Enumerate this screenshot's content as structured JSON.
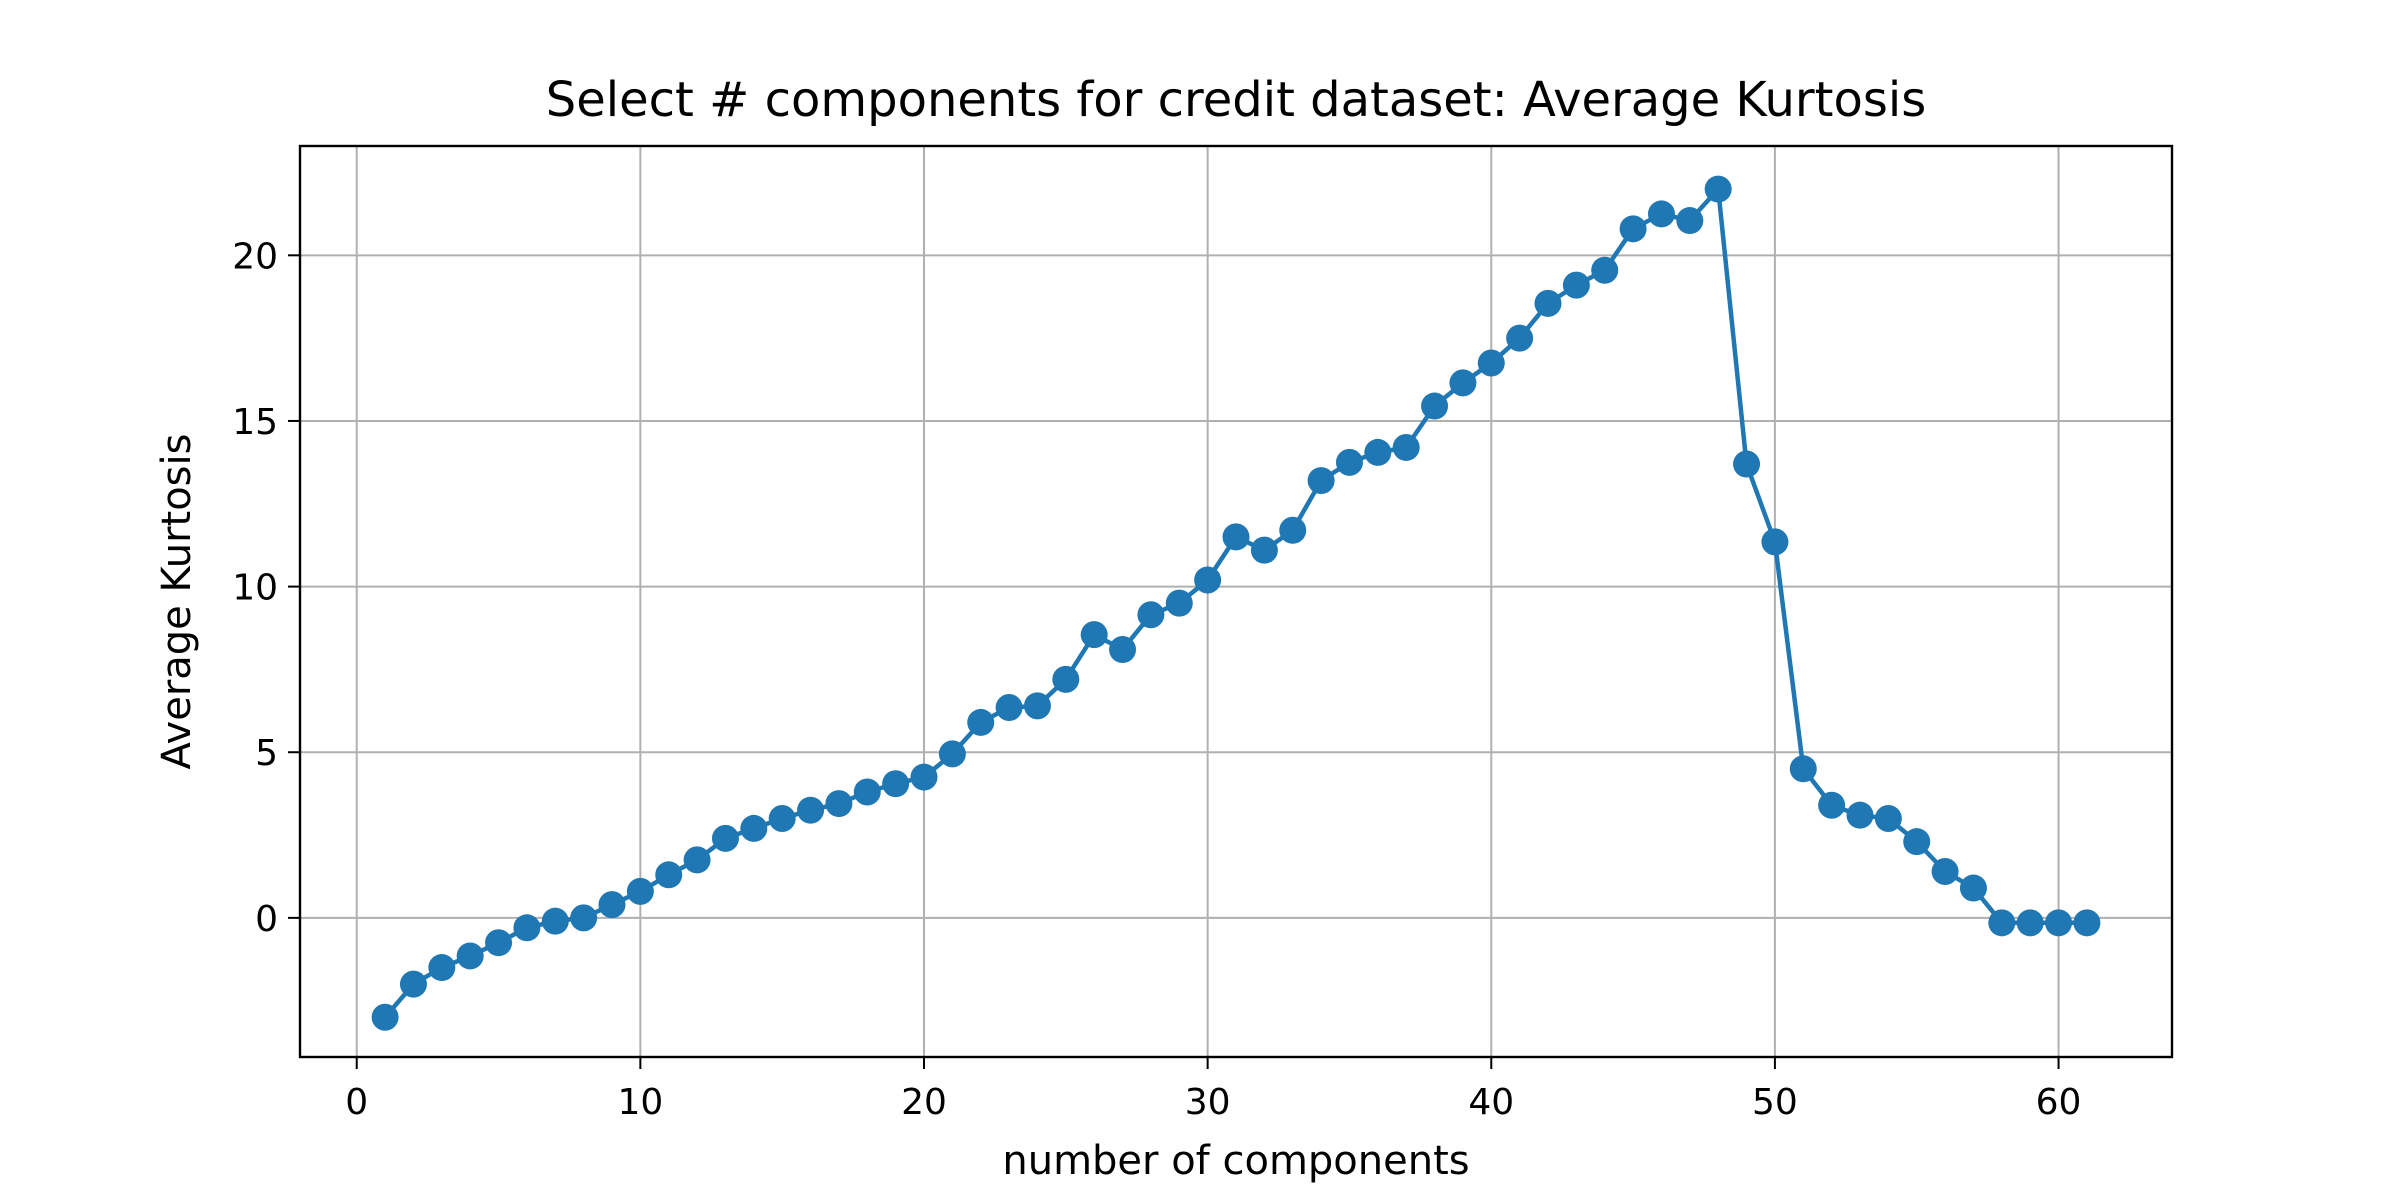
{
  "chart_data": {
    "type": "line",
    "title": "Select # components for credit dataset: Average Kurtosis",
    "xlabel": "number of components",
    "ylabel": "Average Kurtosis",
    "xlim": [
      -2,
      64
    ],
    "ylim": [
      -4.2,
      23.3
    ],
    "xticks": [
      0,
      10,
      20,
      30,
      40,
      50,
      60
    ],
    "yticks": [
      0,
      5,
      10,
      15,
      20
    ],
    "grid": true,
    "line_color": "#1f77b4",
    "marker": "circle",
    "series": [
      {
        "x": [
          1,
          2,
          3,
          4,
          5,
          6,
          7,
          8,
          9,
          10,
          11,
          12,
          13,
          14,
          15,
          16,
          17,
          18,
          19,
          20,
          21,
          22,
          23,
          24,
          25,
          26,
          27,
          28,
          29,
          30,
          31,
          32,
          33,
          34,
          35,
          36,
          37,
          38,
          39,
          40,
          41,
          42,
          43,
          44,
          45,
          46,
          47,
          48,
          49,
          50,
          51,
          52,
          53,
          54,
          55,
          56,
          57,
          58,
          59,
          60,
          61
        ],
        "y": [
          -3.0,
          -2.0,
          -1.5,
          -1.15,
          -0.75,
          -0.3,
          -0.1,
          0.0,
          0.4,
          0.8,
          1.3,
          1.75,
          2.4,
          2.7,
          3.0,
          3.25,
          3.45,
          3.8,
          4.05,
          4.25,
          4.95,
          5.9,
          6.35,
          6.4,
          7.2,
          8.55,
          8.1,
          9.15,
          9.5,
          10.2,
          11.5,
          11.1,
          11.7,
          13.2,
          13.75,
          14.05,
          14.2,
          15.45,
          16.15,
          16.75,
          17.5,
          18.55,
          19.1,
          19.55,
          20.8,
          21.25,
          21.05,
          22.0,
          13.7,
          11.35,
          4.5,
          3.4,
          3.1,
          3.0,
          2.3,
          1.4,
          0.9,
          -0.15,
          -0.15,
          -0.15,
          -0.15
        ]
      }
    ]
  }
}
